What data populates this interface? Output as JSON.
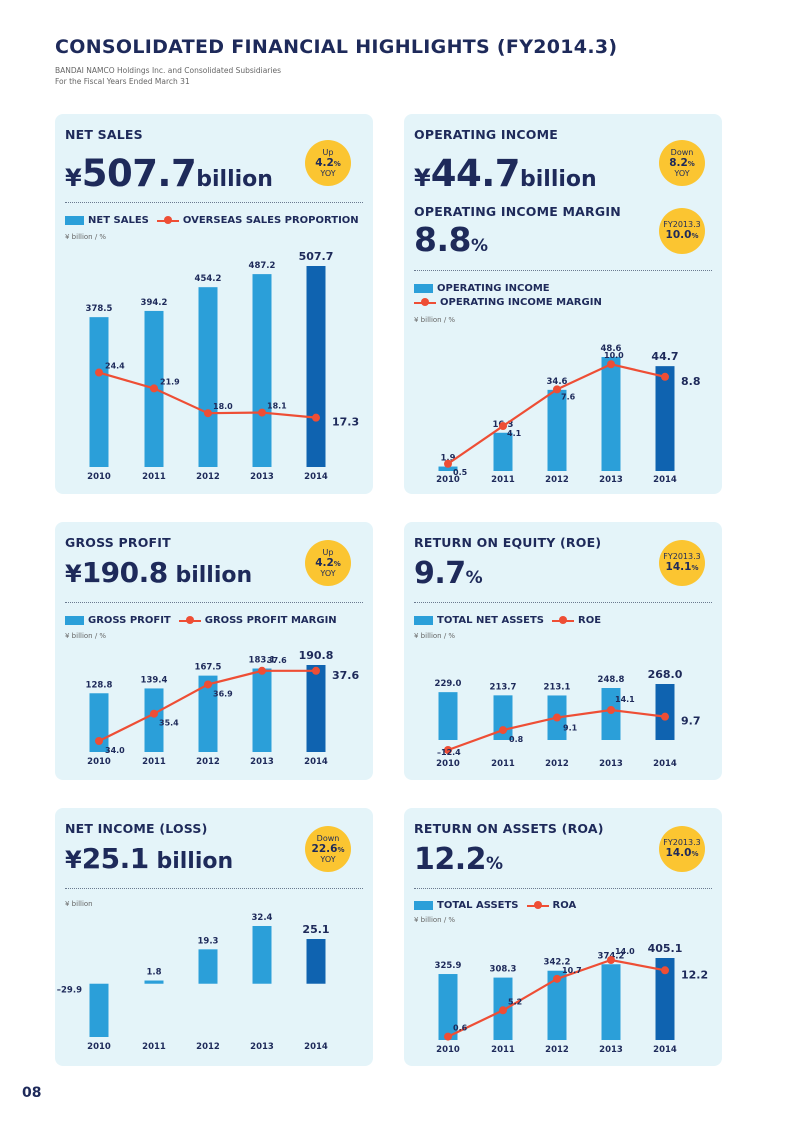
{
  "header": {
    "title": "CONSOLIDATED FINANCIAL HIGHLIGHTS (FY2014.3)",
    "subtitle1": "BANDAI NAMCO Holdings Inc. and Consolidated Subsidiaries",
    "subtitle2": "For the Fiscal Years Ended March 31"
  },
  "page_number": "08",
  "colors": {
    "bar": "#2b9fd9",
    "bar_latest": "#0f63b0",
    "line": "#ee4e35",
    "badge": "#fbc531",
    "panel_bg": "#e4f4f9",
    "text": "#1e2a5a"
  },
  "panels": {
    "net_sales": {
      "title": "NET SALES",
      "yen": "¥",
      "value": "507.7",
      "unit": "billion",
      "badge": {
        "line1": "Up",
        "line2": "4.2",
        "pct": "%",
        "line3": "YOY"
      },
      "legend_bar": "NET SALES",
      "legend_line": "OVERSEAS SALES PROPORTION",
      "units": "¥ billion / %"
    },
    "operating_income": {
      "title": "OPERATING INCOME",
      "yen": "¥",
      "value": "44.7",
      "unit": "billion",
      "badge": {
        "line1": "Down",
        "line2": "8.2",
        "pct": "%",
        "line3": "YOY"
      },
      "margin_title": "OPERATING INCOME MARGIN",
      "margin_value": "8.8",
      "margin_unit": "%",
      "badge2": {
        "line1": "FY2013.3",
        "line2": "10.0",
        "pct": "%"
      },
      "legend_bar": "OPERATING INCOME",
      "legend_line": "OPERATING INCOME MARGIN",
      "units": "¥ billion / %"
    },
    "gross_profit": {
      "title": "GROSS PROFIT",
      "yen": "¥",
      "value": "190.8",
      "unit": "billion",
      "badge": {
        "line1": "Up",
        "line2": "4.2",
        "pct": "%",
        "line3": "YOY"
      },
      "legend_bar": "GROSS PROFIT",
      "legend_line": "GROSS PROFIT MARGIN",
      "units": "¥ billion / %"
    },
    "roe": {
      "title": "RETURN ON EQUITY (ROE)",
      "value": "9.7",
      "unit": "%",
      "badge": {
        "line1": "FY2013.3",
        "line2": "14.1",
        "pct": "%"
      },
      "legend_bar": "TOTAL NET ASSETS",
      "legend_line": "ROE",
      "units": "¥ billion / %"
    },
    "net_income": {
      "title": "NET INCOME (LOSS)",
      "yen": "¥",
      "value": "25.1",
      "unit": "billion",
      "badge": {
        "line1": "Down",
        "line2": "22.6",
        "pct": "%",
        "line3": "YOY"
      },
      "units": "¥ billion"
    },
    "roa": {
      "title": "RETURN ON ASSETS (ROA)",
      "value": "12.2",
      "unit": "%",
      "badge": {
        "line1": "FY2013.3",
        "line2": "14.0",
        "pct": "%"
      },
      "legend_bar": "TOTAL ASSETS",
      "legend_line": "ROA",
      "units": "¥ billion / %"
    }
  },
  "chart_data": [
    {
      "id": "net_sales",
      "type": "bar",
      "categories": [
        "2010",
        "2011",
        "2012",
        "2013",
        "2014"
      ],
      "series": [
        {
          "name": "NET SALES",
          "type": "bar",
          "values": [
            378.5,
            394.2,
            454.2,
            487.2,
            507.7
          ],
          "labels": [
            "378.5",
            "394.2",
            "454.2",
            "487.2",
            "507.7"
          ]
        },
        {
          "name": "OVERSEAS SALES PROPORTION",
          "type": "line",
          "values": [
            24.4,
            21.9,
            18.0,
            18.1,
            17.3
          ],
          "labels": [
            "24.4",
            "21.9",
            "18.0",
            "18.1",
            "17.3"
          ]
        }
      ],
      "xlabel": "",
      "ylabel": ""
    },
    {
      "id": "operating_income",
      "type": "bar",
      "categories": [
        "2010",
        "2011",
        "2012",
        "2013",
        "2014"
      ],
      "series": [
        {
          "name": "OPERATING INCOME",
          "type": "bar",
          "values": [
            1.9,
            16.3,
            34.6,
            48.6,
            44.7
          ],
          "labels": [
            "1.9",
            "16.3",
            "34.6",
            "48.6",
            "44.7"
          ]
        },
        {
          "name": "OPERATING INCOME MARGIN",
          "type": "line",
          "values": [
            0.5,
            4.1,
            7.6,
            10.0,
            8.8
          ],
          "labels": [
            "0.5",
            "4.1",
            "7.6",
            "10.0",
            "8.8"
          ]
        }
      ],
      "xlabel": "",
      "ylabel": ""
    },
    {
      "id": "gross_profit",
      "type": "bar",
      "categories": [
        "2010",
        "2011",
        "2012",
        "2013",
        "2014"
      ],
      "series": [
        {
          "name": "GROSS PROFIT",
          "type": "bar",
          "values": [
            128.8,
            139.4,
            167.5,
            183.1,
            190.8
          ],
          "labels": [
            "128.8",
            "139.4",
            "167.5",
            "183.1",
            "190.8"
          ]
        },
        {
          "name": "GROSS PROFIT MARGIN",
          "type": "line",
          "values": [
            34.0,
            35.4,
            36.9,
            37.6,
            37.6
          ],
          "labels": [
            "34.0",
            "35.4",
            "36.9",
            "37.6",
            "37.6"
          ]
        }
      ],
      "xlabel": "",
      "ylabel": ""
    },
    {
      "id": "roe",
      "type": "bar",
      "categories": [
        "2010",
        "2011",
        "2012",
        "2013",
        "2014"
      ],
      "series": [
        {
          "name": "TOTAL NET ASSETS",
          "type": "bar",
          "values": [
            229.0,
            213.7,
            213.1,
            248.8,
            268.0
          ],
          "labels": [
            "229.0",
            "213.7",
            "213.1",
            "248.8",
            "268.0"
          ]
        },
        {
          "name": "ROE",
          "type": "line",
          "values": [
            -12.4,
            0.8,
            9.1,
            14.1,
            9.7
          ],
          "labels": [
            "–12.4",
            "0.8",
            "9.1",
            "14.1",
            "9.7"
          ]
        }
      ],
      "xlabel": "",
      "ylabel": ""
    },
    {
      "id": "net_income",
      "type": "bar",
      "categories": [
        "2010",
        "2011",
        "2012",
        "2013",
        "2014"
      ],
      "series": [
        {
          "name": "",
          "type": "bar",
          "values": [
            -29.9,
            1.8,
            19.3,
            32.4,
            25.1
          ],
          "labels": [
            "–29.9",
            "1.8",
            "19.3",
            "32.4",
            "25.1"
          ]
        }
      ],
      "xlabel": "",
      "ylabel": ""
    },
    {
      "id": "roa",
      "type": "bar",
      "categories": [
        "2010",
        "2011",
        "2012",
        "2013",
        "2014"
      ],
      "series": [
        {
          "name": "TOTAL ASSETS",
          "type": "bar",
          "values": [
            325.9,
            308.3,
            342.2,
            374.2,
            405.1
          ],
          "labels": [
            "325.9",
            "308.3",
            "342.2",
            "374.2",
            "405.1"
          ]
        },
        {
          "name": "ROA",
          "type": "line",
          "values": [
            0.6,
            5.2,
            10.7,
            14.0,
            12.2
          ],
          "labels": [
            "0.6",
            "5.2",
            "10.7",
            "14.0",
            "12.2"
          ]
        }
      ],
      "xlabel": "",
      "ylabel": ""
    }
  ]
}
